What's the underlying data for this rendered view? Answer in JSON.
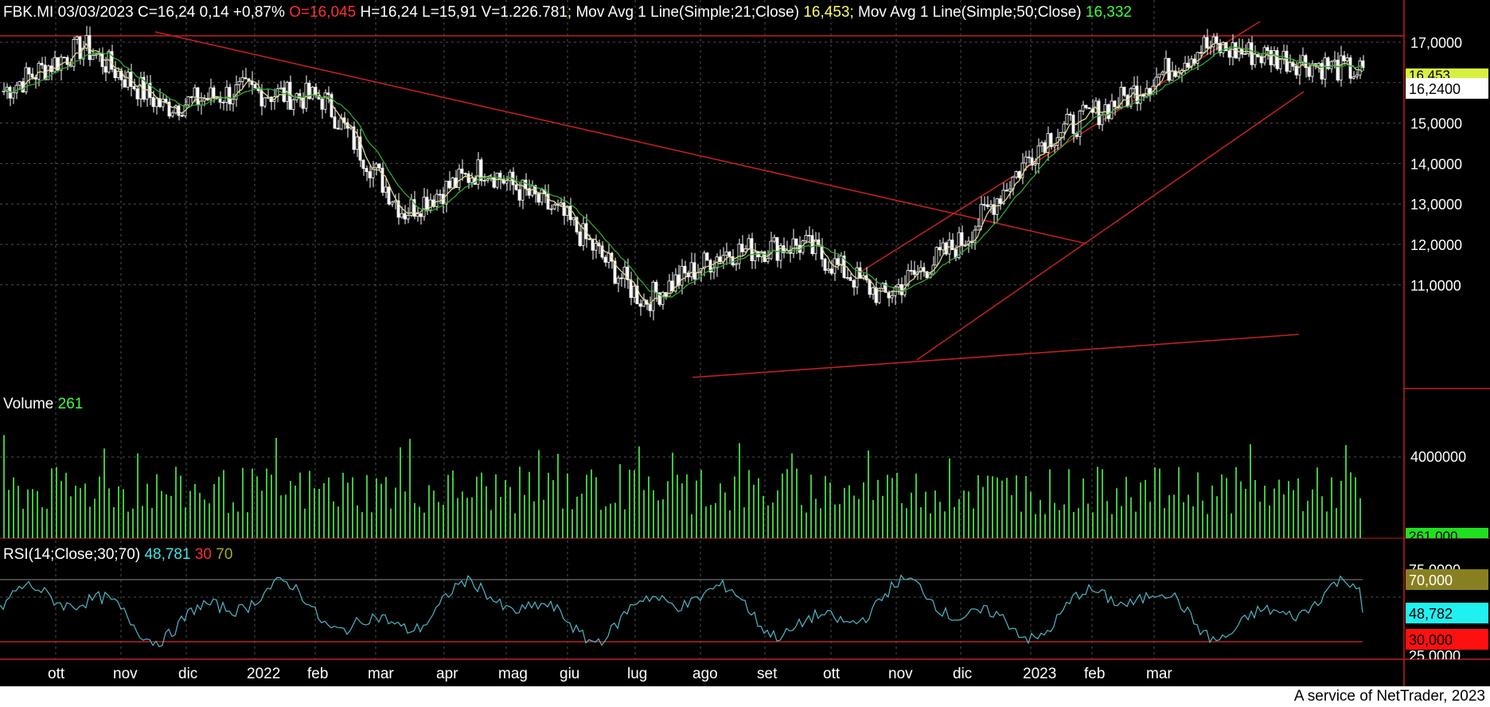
{
  "header": {
    "symbol": "FBK.MI",
    "date": "03/03/2023",
    "close_label": "C=16,24",
    "change": "0,14",
    "change_pct": "+0,87%",
    "open_label": "O=16,045",
    "high_label": "H=16,24",
    "low_label": "L=15,91",
    "volume_label": "V=1.226.781",
    "ma21_label": "Mov Avg 1 Line(Simple;21;Close)",
    "ma21_value": "16,453",
    "ma50_label": "Mov Avg 1 Line(Simple;50;Close)",
    "ma50_value": "16,332"
  },
  "volume_panel": {
    "label": "Volume",
    "value": "261",
    "badge": "261,000",
    "tick": "4000000"
  },
  "rsi_panel": {
    "label": "RSI(14;Close;30;70)",
    "value": "48,781",
    "low": "30",
    "high": "70",
    "badge_high": "70,000",
    "badge_value": "48,782",
    "badge_low": "30,000",
    "tick_top": "75,0000",
    "tick_bottom": "25,0000"
  },
  "price_badges": {
    "last": "16,2400",
    "ma21_partial": "16,453"
  },
  "footer": {
    "text": "A service of NetTrader, 2023"
  },
  "colors": {
    "background": "#000000",
    "price": "#ffffff",
    "ma21": "#d8d890",
    "ma50": "#2ea82e",
    "trendline": "#c02020",
    "volume": "#3ec83e",
    "rsi": "#4fb8c8",
    "header_red": "#ff3030",
    "header_yellow": "#ffff60",
    "header_green": "#40ff40"
  },
  "chart_data": {
    "type": "candlestick",
    "price_axis": {
      "ticks": [
        "11,0000",
        "12,0000",
        "13,0000",
        "14,0000",
        "15,0000",
        "16,0000",
        "17,0000"
      ],
      "ylim": [
        10,
        17.6
      ]
    },
    "x_tick_labels": [
      "ott",
      "nov",
      "dic",
      "2022",
      "feb",
      "mar",
      "apr",
      "mag",
      "giu",
      "lug",
      "ago",
      "set",
      "ott",
      "nov",
      "dic",
      "2023",
      "feb",
      "mar"
    ],
    "close_series": [
      {
        "month": "ott 2021",
        "value": 15.8
      },
      {
        "month": "nov 2021",
        "value": 16.9
      },
      {
        "month": "dic 2021",
        "value": 15.4
      },
      {
        "month": "gen 2022",
        "value": 15.8
      },
      {
        "month": "feb 2022",
        "value": 15.6
      },
      {
        "month": "mar 2022",
        "value": 12.8
      },
      {
        "month": "apr 2022",
        "value": 13.9
      },
      {
        "month": "mag 2022",
        "value": 12.7
      },
      {
        "month": "giu 2022",
        "value": 10.6
      },
      {
        "month": "lug 2022",
        "value": 11.8
      },
      {
        "month": "ago 2022",
        "value": 12.0
      },
      {
        "month": "set 2022",
        "value": 10.7
      },
      {
        "month": "ott 2022",
        "value": 12.1
      },
      {
        "month": "nov 2022",
        "value": 14.6
      },
      {
        "month": "dic 2022",
        "value": 15.6
      },
      {
        "month": "gen 2023",
        "value": 16.9
      },
      {
        "month": "feb 2023",
        "value": 16.6
      },
      {
        "month": "mar 2023",
        "value": 16.24
      }
    ],
    "rsi_levels": {
      "high": 70,
      "low": 30,
      "last": 48.781
    }
  }
}
